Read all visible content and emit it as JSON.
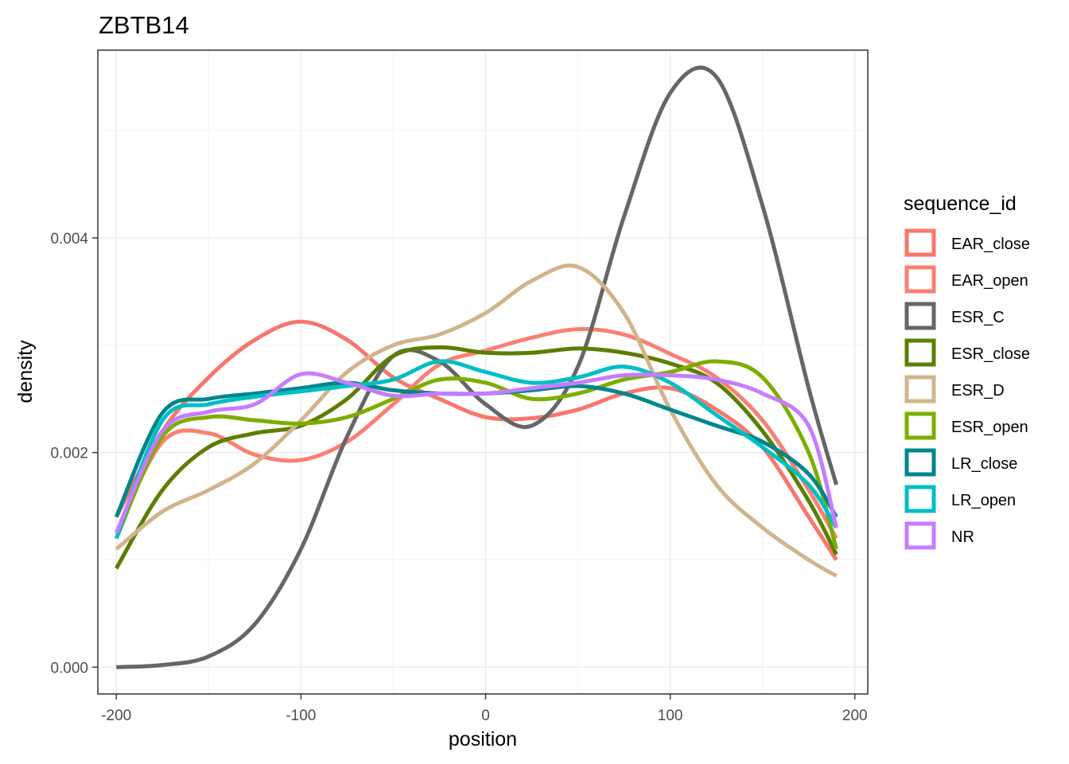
{
  "chart_data": {
    "type": "line",
    "title": "ZBTB14",
    "xlabel": "position",
    "ylabel": "density",
    "xlim": [
      -210,
      207
    ],
    "ylim": [
      -0.00025,
      0.00575
    ],
    "x_ticks": [
      -200,
      -100,
      0,
      100,
      200
    ],
    "x_tick_labels": [
      "-200",
      "-100",
      "0",
      "100",
      "200"
    ],
    "y_ticks": [
      0.0,
      0.002,
      0.004
    ],
    "y_tick_labels": [
      "0.000",
      "0.002",
      "0.004"
    ],
    "grid": true,
    "legend": {
      "title": "sequence_id",
      "position": "right"
    },
    "x": [
      -200,
      -175,
      -150,
      -125,
      -100,
      -75,
      -50,
      -25,
      0,
      25,
      50,
      75,
      100,
      125,
      150,
      175,
      190
    ],
    "series": [
      {
        "name": "EAR_close",
        "color": "#F8766D",
        "values": [
          0.0014,
          0.0022,
          0.0027,
          0.00305,
          0.00322,
          0.00305,
          0.0027,
          0.0025,
          0.00233,
          0.00232,
          0.0024,
          0.00255,
          0.0026,
          0.0024,
          0.00205,
          0.0014,
          0.001
        ]
      },
      {
        "name": "EAR_open",
        "color": "#FA8072",
        "values": [
          0.00125,
          0.0021,
          0.00218,
          0.00198,
          0.00193,
          0.0021,
          0.00245,
          0.00282,
          0.00295,
          0.00307,
          0.00315,
          0.0031,
          0.00292,
          0.0027,
          0.0023,
          0.00165,
          0.0012
        ]
      },
      {
        "name": "ESR_C",
        "color": "#666666",
        "values": [
          0.0,
          2e-05,
          0.0001,
          0.0004,
          0.0011,
          0.00215,
          0.0029,
          0.00285,
          0.00245,
          0.00225,
          0.0028,
          0.0042,
          0.00535,
          0.0055,
          0.0043,
          0.0026,
          0.0017
        ]
      },
      {
        "name": "ESR_close",
        "color": "#5C7E00",
        "values": [
          0.00092,
          0.00165,
          0.00205,
          0.00218,
          0.00225,
          0.0025,
          0.0029,
          0.00298,
          0.00293,
          0.00293,
          0.00297,
          0.00293,
          0.00283,
          0.00265,
          0.0022,
          0.00155,
          0.00105
        ]
      },
      {
        "name": "ESR_D",
        "color": "#D2B48C",
        "values": [
          0.0011,
          0.00145,
          0.00165,
          0.0019,
          0.0023,
          0.00275,
          0.003,
          0.0031,
          0.0033,
          0.0036,
          0.00373,
          0.0033,
          0.0024,
          0.0017,
          0.0013,
          0.001,
          0.00085
        ]
      },
      {
        "name": "ESR_open",
        "color": "#7CAE00",
        "values": [
          0.0012,
          0.00215,
          0.00233,
          0.0023,
          0.00227,
          0.00233,
          0.0025,
          0.00268,
          0.00265,
          0.0025,
          0.00255,
          0.00268,
          0.00275,
          0.00285,
          0.0027,
          0.002,
          0.0011
        ]
      },
      {
        "name": "LR_close",
        "color": "#00868B",
        "values": [
          0.0014,
          0.00237,
          0.0025,
          0.00255,
          0.0026,
          0.00265,
          0.00258,
          0.00255,
          0.00255,
          0.00258,
          0.00262,
          0.00255,
          0.0024,
          0.00225,
          0.0021,
          0.0018,
          0.0014
        ]
      },
      {
        "name": "LR_open",
        "color": "#00BFC4",
        "values": [
          0.0012,
          0.0023,
          0.00245,
          0.00252,
          0.00257,
          0.00262,
          0.00268,
          0.00285,
          0.00275,
          0.00265,
          0.0027,
          0.0028,
          0.00265,
          0.00235,
          0.00205,
          0.0017,
          0.0013
        ]
      },
      {
        "name": "NR",
        "color": "#C77CFF",
        "values": [
          0.00125,
          0.0022,
          0.00238,
          0.00245,
          0.00273,
          0.00265,
          0.00253,
          0.00255,
          0.00255,
          0.0026,
          0.00265,
          0.00272,
          0.00272,
          0.00268,
          0.00255,
          0.00225,
          0.0013
        ]
      }
    ]
  }
}
